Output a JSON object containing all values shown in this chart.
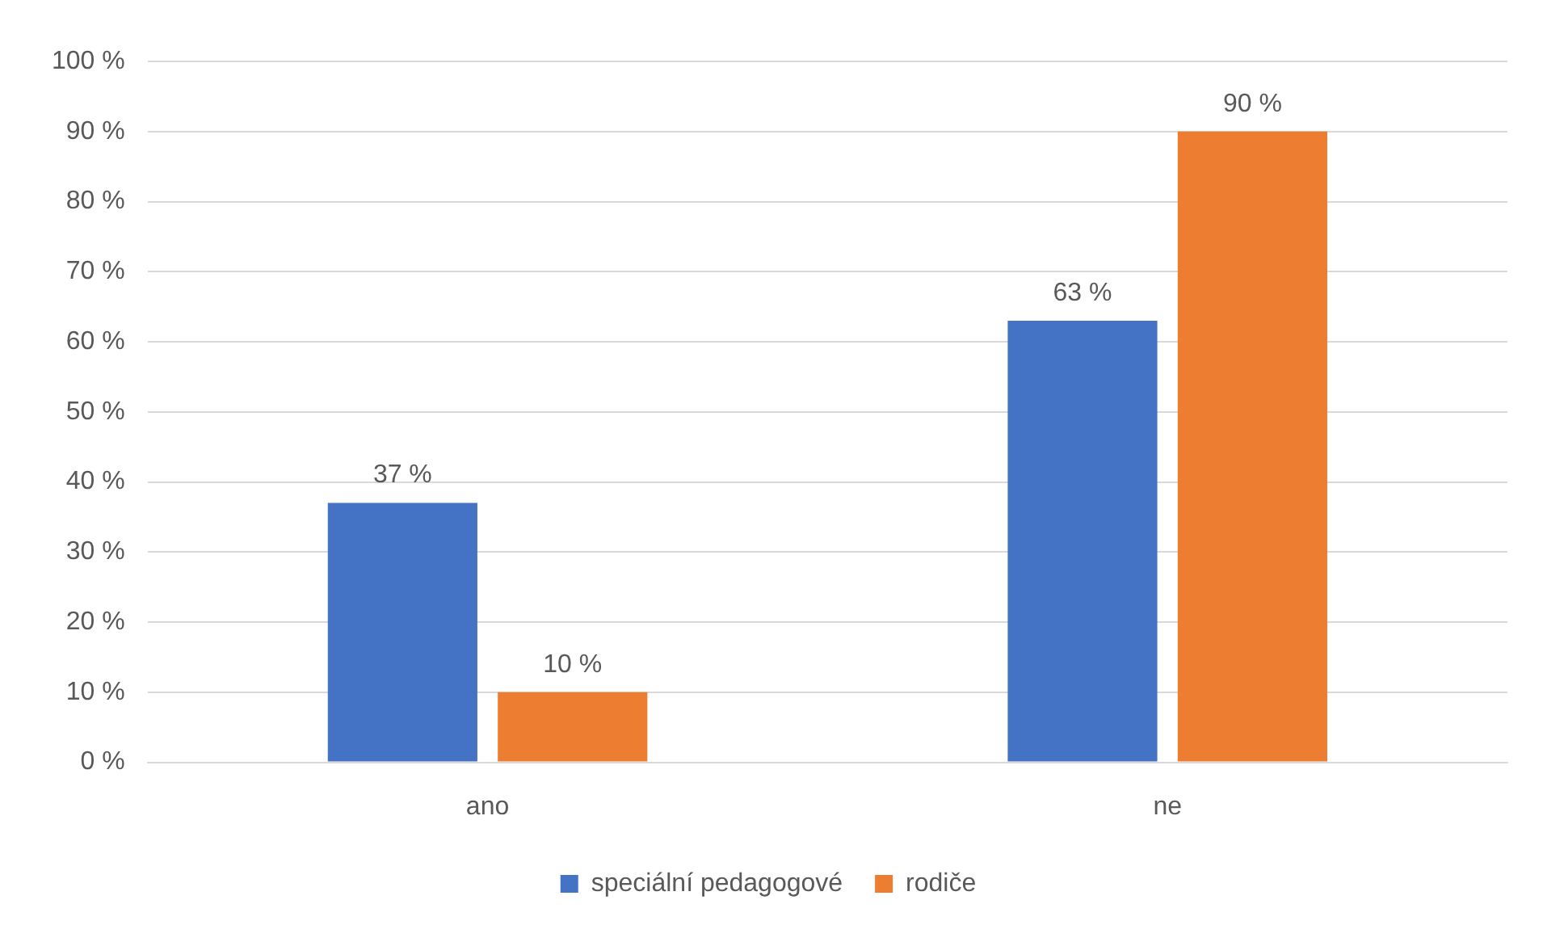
{
  "chart_data": {
    "type": "bar",
    "categories": [
      "ano",
      "ne"
    ],
    "series": [
      {
        "name": "speciální pedagogové",
        "color": "#4472c4",
        "values": [
          37,
          63
        ],
        "value_labels": [
          "37 %",
          "63 %"
        ]
      },
      {
        "name": "rodiče",
        "color": "#ed7d31",
        "values": [
          10,
          90
        ],
        "value_labels": [
          "10 %",
          "90 %"
        ]
      }
    ],
    "ylim": [
      0,
      100
    ],
    "yticks": [
      {
        "value": 0,
        "label": "0 %"
      },
      {
        "value": 10,
        "label": "10 %"
      },
      {
        "value": 20,
        "label": "20 %"
      },
      {
        "value": 30,
        "label": "30 %"
      },
      {
        "value": 40,
        "label": "40 %"
      },
      {
        "value": 50,
        "label": "50 %"
      },
      {
        "value": 60,
        "label": "60 %"
      },
      {
        "value": 70,
        "label": "70 %"
      },
      {
        "value": 80,
        "label": "80 %"
      },
      {
        "value": 90,
        "label": "90 %"
      },
      {
        "value": 100,
        "label": "100 %"
      }
    ],
    "grid": "y",
    "legend": "bottom"
  }
}
